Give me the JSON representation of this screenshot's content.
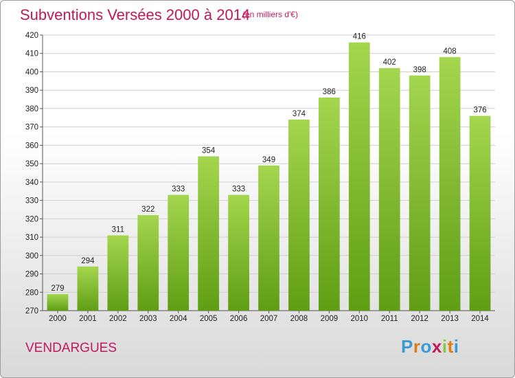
{
  "title": "Subventions Versées 2000 à 2014",
  "subtitle": "(en milliers d'€)",
  "commune": "VENDARGUES",
  "logo": {
    "letters": [
      "P",
      "r",
      "o",
      "x",
      "i",
      "t",
      "i"
    ],
    "colors": [
      "#3a9ad9",
      "#e07b1a",
      "#3a9ad9",
      "#c2185b",
      "#8cc63f",
      "#e07b1a",
      "#3a9ad9"
    ]
  },
  "colors": {
    "accent": "#c2185b",
    "bar_top": "#a4d64e",
    "bar_bottom": "#5f9e14",
    "grid": "#cfcfcf"
  },
  "chart_data": {
    "type": "bar",
    "categories": [
      "2000",
      "2001",
      "2002",
      "2003",
      "2004",
      "2005",
      "2006",
      "2007",
      "2008",
      "2009",
      "2010",
      "2011",
      "2012",
      "2013",
      "2014"
    ],
    "values": [
      279,
      294,
      311,
      322,
      333,
      354,
      333,
      349,
      374,
      386,
      416,
      402,
      398,
      408,
      376
    ],
    "title": "Subventions Versées 2000 à 2014",
    "subtitle": "(en milliers d'€)",
    "xlabel": "",
    "ylabel": "",
    "ylim": [
      270,
      420
    ],
    "yticks": [
      270,
      280,
      290,
      300,
      310,
      320,
      330,
      340,
      350,
      360,
      370,
      380,
      390,
      400,
      410,
      420
    ],
    "grid": true,
    "data_labels": true
  }
}
